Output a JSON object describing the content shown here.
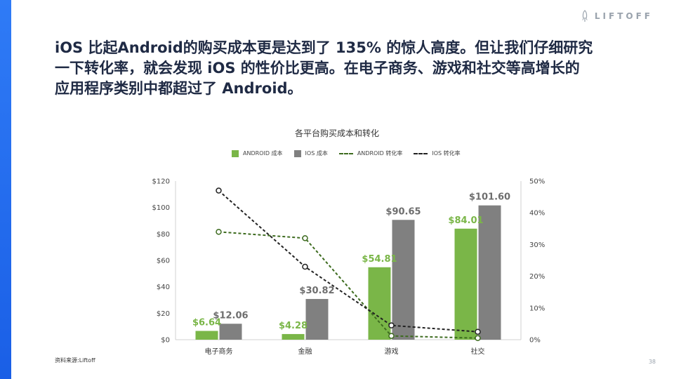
{
  "logo": {
    "text": "LIFTOFF",
    "icon": "rocket-icon"
  },
  "headline": [
    "iOS 比起Android的购买成本更是达到了 135% 的惊人高度。但让我们仔细研究",
    "一下转化率，就会发现 iOS 的性价比更高。在电子商务、游戏和社交等高增长的",
    "应用程序类别中都超过了 Android。"
  ],
  "source": "资料来源:Liftoff",
  "page_number": "38",
  "colors": {
    "android": "#7ab648",
    "ios": "#808080",
    "android_line": "#3d6b1f",
    "ios_line": "#222222",
    "accent": "#2f7bf6"
  },
  "chart_data": {
    "type": "bar",
    "title": "各平台购买成本和转化",
    "categories": [
      "电子商务",
      "金融",
      "游戏",
      "社交"
    ],
    "series": [
      {
        "name": "ANDROID 成本",
        "type": "bar",
        "axis": "left",
        "values": [
          6.64,
          4.28,
          54.81,
          84.01
        ],
        "labels": [
          "$6.64",
          "$4.28",
          "$54.81",
          "$84.01"
        ]
      },
      {
        "name": "IOS 成本",
        "type": "bar",
        "axis": "left",
        "values": [
          12.06,
          30.82,
          90.65,
          101.6
        ],
        "labels": [
          "$12.06",
          "$30.82",
          "$90.65",
          "$101.60"
        ]
      },
      {
        "name": "ANDROID 转化率",
        "type": "line",
        "axis": "right",
        "values": [
          34,
          32,
          1.2,
          0.5
        ]
      },
      {
        "name": "IOS 转化率",
        "type": "line",
        "axis": "right",
        "values": [
          47,
          23,
          4.5,
          2.5
        ]
      }
    ],
    "y_left": {
      "min": 0,
      "max": 120,
      "ticks": [
        "$0",
        "$20",
        "$40",
        "$60",
        "$80",
        "$100",
        "$120"
      ]
    },
    "y_right": {
      "min": 0,
      "max": 50,
      "ticks": [
        "0%",
        "10%",
        "20%",
        "30%",
        "40%",
        "50%"
      ]
    },
    "legend": "top"
  }
}
